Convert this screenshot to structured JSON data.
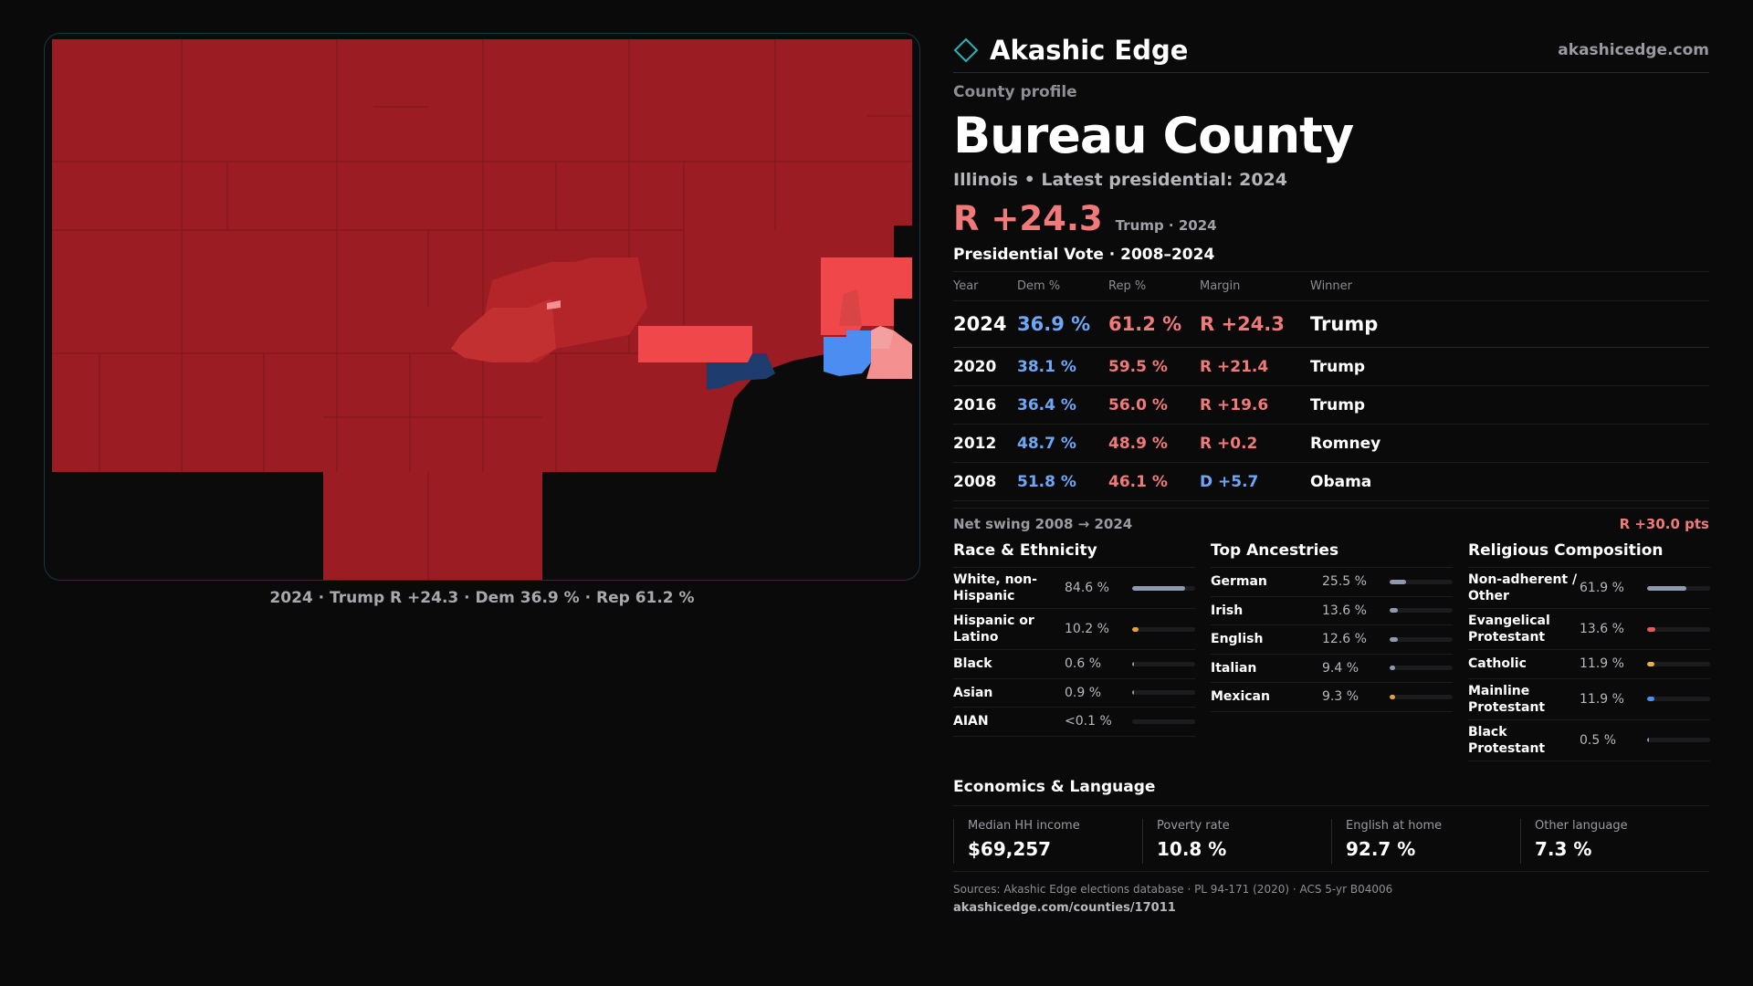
{
  "brand": {
    "name": "Akashic Edge",
    "site": "akashicedge.com",
    "logo_icon": "diamond-outline-icon",
    "accent": "#2bb3b3"
  },
  "profile": {
    "kicker": "County profile",
    "county": "Bureau County",
    "subtitle": "Illinois • Latest presidential: 2024",
    "headline_margin": "R +24.3",
    "headline_detail": "Trump · 2024"
  },
  "map": {
    "caption": "2024 · Trump R +24.3 · Dem 36.9 % · Rep 61.2 %",
    "colors": {
      "strong_rep": "#9b1c22",
      "rep": "#b32528",
      "lean_rep": "#d94445",
      "light_rep": "#f0474a",
      "tilt_rep": "#f59090",
      "lean_dem": "#4b8df0",
      "strong_dem": "#1e3d6e"
    }
  },
  "votes": {
    "title": "Presidential Vote · 2008–2024",
    "headers": [
      "Year",
      "Dem %",
      "Rep %",
      "Margin",
      "Winner"
    ],
    "rows": [
      {
        "year": "2024",
        "dem": "36.9 %",
        "rep": "61.2 %",
        "margin": "R +24.3",
        "winner": "Trump",
        "party": "R"
      },
      {
        "year": "2020",
        "dem": "38.1 %",
        "rep": "59.5 %",
        "margin": "R +21.4",
        "winner": "Trump",
        "party": "R"
      },
      {
        "year": "2016",
        "dem": "36.4 %",
        "rep": "56.0 %",
        "margin": "R +19.6",
        "winner": "Trump",
        "party": "R"
      },
      {
        "year": "2012",
        "dem": "48.7 %",
        "rep": "48.9 %",
        "margin": "R +0.2",
        "winner": "Romney",
        "party": "R"
      },
      {
        "year": "2008",
        "dem": "51.8 %",
        "rep": "46.1 %",
        "margin": "D +5.7",
        "winner": "Obama",
        "party": "D"
      }
    ],
    "net_swing_label": "Net swing 2008 → 2024",
    "net_swing_value": "R +30.0 pts"
  },
  "race": {
    "title": "Race & Ethnicity",
    "rows": [
      {
        "label": "White, non-Hispanic",
        "pct": "84.6 %",
        "share": 84.6,
        "color": "#8f9ab0"
      },
      {
        "label": "Hispanic or Latino",
        "pct": "10.2 %",
        "share": 10.2,
        "color": "#e8a23a"
      },
      {
        "label": "Black",
        "pct": "0.6 %",
        "share": 0.6,
        "color": "#8f9ab0"
      },
      {
        "label": "Asian",
        "pct": "0.9 %",
        "share": 0.9,
        "color": "#8f9ab0"
      },
      {
        "label": "AIAN",
        "pct": "<0.1 %",
        "share": 0.0,
        "color": "#8f9ab0"
      }
    ]
  },
  "ancestry": {
    "title": "Top Ancestries",
    "rows": [
      {
        "label": "German",
        "pct": "25.5 %",
        "share": 25.5,
        "color": "#8f9ab0"
      },
      {
        "label": "Irish",
        "pct": "13.6 %",
        "share": 13.6,
        "color": "#8f9ab0"
      },
      {
        "label": "English",
        "pct": "12.6 %",
        "share": 12.6,
        "color": "#8f9ab0"
      },
      {
        "label": "Italian",
        "pct": "9.4 %",
        "share": 9.4,
        "color": "#8f9ab0"
      },
      {
        "label": "Mexican",
        "pct": "9.3 %",
        "share": 9.3,
        "color": "#e8a23a"
      }
    ]
  },
  "religion": {
    "title": "Religious Composition",
    "rows": [
      {
        "label": "Non-adherent / Other",
        "pct": "61.9 %",
        "share": 61.9,
        "color": "#8f9ab0"
      },
      {
        "label": "Evangelical Protestant",
        "pct": "13.6 %",
        "share": 13.6,
        "color": "#e85a5a"
      },
      {
        "label": "Catholic",
        "pct": "11.9 %",
        "share": 11.9,
        "color": "#e8b23a"
      },
      {
        "label": "Mainline Protestant",
        "pct": "11.9 %",
        "share": 11.9,
        "color": "#4b8df0"
      },
      {
        "label": "Black Protestant",
        "pct": "0.5 %",
        "share": 0.5,
        "color": "#8f9ab0"
      }
    ]
  },
  "economics": {
    "title": "Economics & Language",
    "cells": [
      {
        "label": "Median HH income",
        "value": "$69,257"
      },
      {
        "label": "Poverty rate",
        "value": "10.8 %"
      },
      {
        "label": "English at home",
        "value": "92.7 %"
      },
      {
        "label": "Other language",
        "value": "7.3 %"
      }
    ]
  },
  "footer": {
    "sources": "Sources: Akashic Edge elections database · PL 94-171 (2020) · ACS 5-yr B04006",
    "url": "akashicedge.com/counties/17011"
  }
}
